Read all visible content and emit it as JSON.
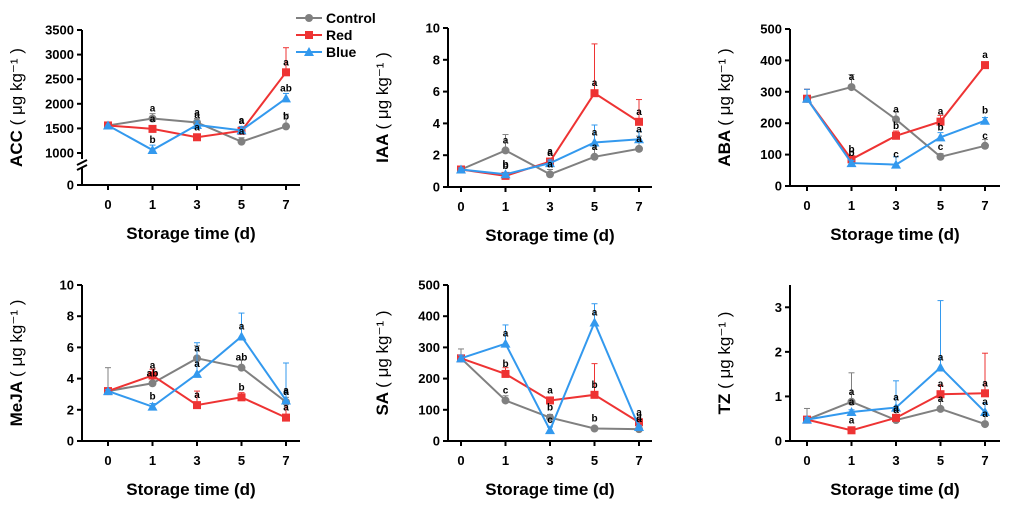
{
  "legend": [
    {
      "name": "Control",
      "color": "#808080",
      "marker": "circle"
    },
    {
      "name": "Red",
      "color": "#ee3333",
      "marker": "square"
    },
    {
      "name": "Blue",
      "color": "#3399ee",
      "marker": "triangle"
    }
  ],
  "chart_data": [
    {
      "type": "line",
      "ylabel": "ACC",
      "yunit": "( μg kg⁻¹ )",
      "xlabel": "Storage time (d)",
      "x": [
        0,
        1,
        3,
        5,
        7
      ],
      "axis_break": true,
      "yticks": [
        0,
        1000,
        1500,
        2000,
        2500,
        3000,
        3500
      ],
      "ylim": [
        0,
        3500
      ],
      "series": [
        {
          "name": "Control",
          "values": [
            1560,
            1700,
            1620,
            1230,
            1540
          ],
          "errors": [
            0,
            100,
            80,
            80,
            250
          ],
          "letters": [
            "",
            "a",
            "a",
            "a",
            "b"
          ]
        },
        {
          "name": "Red",
          "values": [
            1560,
            1490,
            1320,
            1450,
            2640
          ],
          "errors": [
            0,
            60,
            50,
            80,
            500
          ],
          "letters": [
            "",
            "a",
            "a",
            "a",
            "a"
          ]
        },
        {
          "name": "Blue",
          "values": [
            1560,
            1060,
            1570,
            1460,
            2110
          ],
          "errors": [
            0,
            100,
            80,
            80,
            100
          ],
          "letters": [
            "",
            "b",
            "a",
            "a",
            "ab"
          ]
        }
      ]
    },
    {
      "type": "line",
      "ylabel": "IAA",
      "yunit": "( μg kg⁻¹ )",
      "xlabel": "Storage time (d)",
      "x": [
        0,
        1,
        3,
        5,
        7
      ],
      "yticks": [
        0,
        2,
        4,
        6,
        8,
        10
      ],
      "ylim": [
        0,
        10
      ],
      "series": [
        {
          "name": "Control",
          "values": [
            1.1,
            2.3,
            0.8,
            1.9,
            2.4
          ],
          "errors": [
            0.1,
            1.0,
            0.3,
            0.8,
            0.8
          ],
          "letters": [
            "",
            "a",
            "a",
            "a",
            "a"
          ]
        },
        {
          "name": "Red",
          "values": [
            1.1,
            0.7,
            1.6,
            5.9,
            4.1
          ],
          "errors": [
            0.1,
            0.1,
            0.1,
            3.1,
            1.4
          ],
          "letters": [
            "",
            "b",
            "a",
            "a",
            "a"
          ]
        },
        {
          "name": "Blue",
          "values": [
            1.1,
            0.8,
            1.5,
            2.8,
            3.0
          ],
          "errors": [
            0.1,
            0.1,
            0.2,
            1.1,
            0.5
          ],
          "letters": [
            "",
            "b",
            "a",
            "a",
            "a"
          ]
        }
      ]
    },
    {
      "type": "line",
      "ylabel": "ABA",
      "yunit": "( μg kg⁻¹ )",
      "xlabel": "Storage time (d)",
      "x": [
        0,
        1,
        3,
        5,
        7
      ],
      "yticks": [
        0,
        100,
        200,
        300,
        400,
        500
      ],
      "ylim": [
        0,
        500
      ],
      "series": [
        {
          "name": "Control",
          "values": [
            278,
            315,
            212,
            93,
            128
          ],
          "errors": [
            30,
            40,
            25,
            10,
            20
          ],
          "letters": [
            "",
            "a",
            "a",
            "c",
            "c"
          ]
        },
        {
          "name": "Red",
          "values": [
            278,
            85,
            160,
            205,
            385
          ],
          "errors": [
            30,
            10,
            15,
            20,
            10
          ],
          "letters": [
            "",
            "b",
            "b",
            "a",
            "a"
          ]
        },
        {
          "name": "Blue",
          "values": [
            278,
            73,
            68,
            155,
            208
          ],
          "errors": [
            30,
            8,
            25,
            15,
            10
          ],
          "letters": [
            "",
            "b",
            "c",
            "b",
            "b"
          ]
        }
      ]
    },
    {
      "type": "line",
      "ylabel": "MeJA",
      "yunit": "( μg kg⁻¹ )",
      "xlabel": "Storage time (d)",
      "x": [
        0,
        1,
        3,
        5,
        7
      ],
      "yticks": [
        0,
        2,
        4,
        6,
        8,
        10
      ],
      "ylim": [
        0,
        10
      ],
      "series": [
        {
          "name": "Control",
          "values": [
            3.2,
            3.7,
            5.3,
            4.7,
            2.5
          ],
          "errors": [
            1.5,
            0.5,
            0.8,
            0.5,
            0.3
          ],
          "letters": [
            "",
            "ab",
            "a",
            "ab",
            "a"
          ]
        },
        {
          "name": "Red",
          "values": [
            3.2,
            4.2,
            2.3,
            2.8,
            1.5
          ],
          "errors": [
            0.1,
            0.4,
            0.9,
            0.3,
            0.9
          ],
          "letters": [
            "",
            "a",
            "a",
            "b",
            "a"
          ]
        },
        {
          "name": "Blue",
          "values": [
            3.2,
            2.2,
            4.3,
            6.7,
            2.6
          ],
          "errors": [
            0.1,
            0.2,
            2.0,
            1.5,
            2.4
          ],
          "letters": [
            "",
            "b",
            "a",
            "a",
            "a"
          ]
        }
      ]
    },
    {
      "type": "line",
      "ylabel": "SA",
      "yunit": "( μg kg⁻¹ )",
      "xlabel": "Storage time (d)",
      "x": [
        0,
        1,
        3,
        5,
        7
      ],
      "yticks": [
        0,
        100,
        200,
        300,
        400,
        500
      ],
      "ylim": [
        0,
        500
      ],
      "series": [
        {
          "name": "Control",
          "values": [
            265,
            130,
            75,
            40,
            38
          ],
          "errors": [
            30,
            15,
            10,
            5,
            5
          ],
          "letters": [
            "",
            "c",
            "b",
            "b",
            "a"
          ]
        },
        {
          "name": "Red",
          "values": [
            265,
            215,
            130,
            148,
            60
          ],
          "errors": [
            10,
            20,
            10,
            100,
            10
          ],
          "letters": [
            "",
            "b",
            "a",
            "b",
            "a"
          ]
        },
        {
          "name": "Blue",
          "values": [
            265,
            312,
            35,
            380,
            45
          ],
          "errors": [
            10,
            60,
            10,
            60,
            5
          ],
          "letters": [
            "",
            "a",
            "c",
            "a",
            "a"
          ]
        }
      ]
    },
    {
      "type": "line",
      "ylabel": "TZ",
      "yunit": "( μg kg⁻¹ )",
      "xlabel": "Storage time (d)",
      "x": [
        0,
        1,
        3,
        5,
        7
      ],
      "yticks": [
        0,
        1,
        2,
        3
      ],
      "ylim": [
        0,
        3.5
      ],
      "series": [
        {
          "name": "Control",
          "values": [
            0.48,
            0.88,
            0.47,
            0.72,
            0.38
          ],
          "errors": [
            0.25,
            0.65,
            0.3,
            0.4,
            0.25
          ],
          "letters": [
            "",
            "a",
            "a",
            "a",
            "a"
          ]
        },
        {
          "name": "Red",
          "values": [
            0.48,
            0.24,
            0.52,
            1.05,
            1.07
          ],
          "errors": [
            0.05,
            0.05,
            0.05,
            0.2,
            0.9
          ],
          "letters": [
            "",
            "a",
            "a",
            "a",
            "a"
          ]
        },
        {
          "name": "Blue",
          "values": [
            0.48,
            0.65,
            0.75,
            1.65,
            0.65
          ],
          "errors": [
            0.05,
            0.05,
            0.6,
            1.5,
            0.2
          ],
          "letters": [
            "",
            "a",
            "a",
            "a",
            "a"
          ]
        }
      ]
    }
  ]
}
